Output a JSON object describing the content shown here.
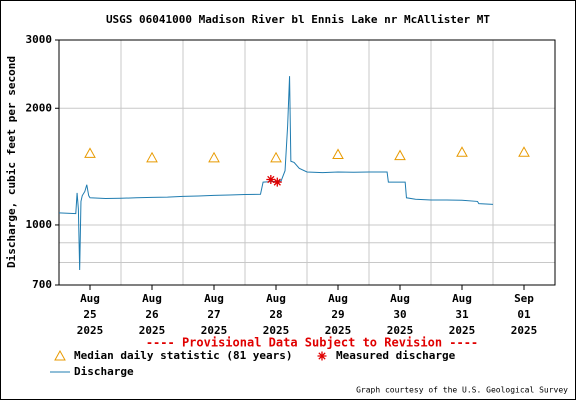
{
  "chart_data": {
    "type": "line",
    "title": "USGS 06041000 Madison River bl Ennis Lake nr McAllister MT",
    "y_label": "Discharge, cubic feet per second",
    "note": "---- Provisional Data Subject to Revision ----",
    "credit": "Graph courtesy of the U.S. Geological Survey",
    "log_scale": true,
    "grid": true,
    "xlim": [
      "2025-08-25T00:00",
      "2025-09-02T00:00"
    ],
    "xticks": [
      {
        "value": "2025-08-25T12:00",
        "label": "Aug 25 2025"
      },
      {
        "value": "2025-08-26T12:00",
        "label": "Aug 26 2025"
      },
      {
        "value": "2025-08-27T12:00",
        "label": "Aug 27 2025"
      },
      {
        "value": "2025-08-28T12:00",
        "label": "Aug 28 2025"
      },
      {
        "value": "2025-08-29T12:00",
        "label": "Aug 29 2025"
      },
      {
        "value": "2025-08-30T12:00",
        "label": "Aug 30 2025"
      },
      {
        "value": "2025-08-31T12:00",
        "label": "Aug 31 2025"
      },
      {
        "value": "2025-09-01T12:00",
        "label": "Sep 01 2025"
      }
    ],
    "x_minor_ticks": [
      "2025-08-26T00:00",
      "2025-08-27T00:00",
      "2025-08-28T00:00",
      "2025-08-29T00:00",
      "2025-08-30T00:00",
      "2025-08-31T00:00",
      "2025-09-01T00:00"
    ],
    "ylim": [
      700,
      3000
    ],
    "yticks": [
      700,
      1000,
      2000,
      3000
    ],
    "y_minor_ticks": [
      800,
      900
    ],
    "series": [
      {
        "name": "Discharge",
        "marker": "line",
        "color": "#1f7cb0",
        "x": [
          "2025-08-25T00:00",
          "2025-08-25T06:30",
          "2025-08-25T07:00",
          "2025-08-25T07:30",
          "2025-08-25T08:00",
          "2025-08-25T08:30",
          "2025-08-25T09:00",
          "2025-08-25T10:00",
          "2025-08-25T10:45",
          "2025-08-25T11:30",
          "2025-08-25T12:00",
          "2025-08-25T18:00",
          "2025-08-26T00:00",
          "2025-08-26T06:00",
          "2025-08-26T12:00",
          "2025-08-26T18:00",
          "2025-08-27T00:00",
          "2025-08-27T06:00",
          "2025-08-27T12:00",
          "2025-08-27T18:00",
          "2025-08-28T00:00",
          "2025-08-28T06:00",
          "2025-08-28T07:00",
          "2025-08-28T12:00",
          "2025-08-28T14:00",
          "2025-08-28T15:30",
          "2025-08-28T16:30",
          "2025-08-28T17:15",
          "2025-08-28T17:45",
          "2025-08-28T19:00",
          "2025-08-28T21:00",
          "2025-08-29T00:00",
          "2025-08-29T06:00",
          "2025-08-29T12:00",
          "2025-08-29T18:00",
          "2025-08-30T00:00",
          "2025-08-30T07:00",
          "2025-08-30T07:30",
          "2025-08-30T14:00",
          "2025-08-30T14:30",
          "2025-08-30T18:00",
          "2025-08-31T00:00",
          "2025-08-31T06:00",
          "2025-08-31T12:00",
          "2025-08-31T18:00",
          "2025-08-31T18:30",
          "2025-09-01T00:00"
        ],
        "values": [
          1074,
          1070,
          1210,
          1100,
          765,
          1150,
          1190,
          1220,
          1270,
          1190,
          1175,
          1170,
          1172,
          1175,
          1178,
          1180,
          1185,
          1188,
          1192,
          1195,
          1198,
          1200,
          1290,
          1295,
          1300,
          1380,
          1800,
          2420,
          1460,
          1450,
          1400,
          1370,
          1365,
          1370,
          1368,
          1370,
          1370,
          1290,
          1290,
          1175,
          1165,
          1160,
          1160,
          1158,
          1150,
          1135,
          1130
        ]
      },
      {
        "name": "Median daily statistic (81 years)",
        "marker": "triangle",
        "color": "#e89a00",
        "x": [
          "2025-08-25T12:00",
          "2025-08-26T12:00",
          "2025-08-27T12:00",
          "2025-08-28T12:00",
          "2025-08-29T12:00",
          "2025-08-30T12:00",
          "2025-08-31T12:00",
          "2025-09-01T12:00"
        ],
        "values": [
          1530,
          1490,
          1490,
          1490,
          1520,
          1510,
          1540,
          1540
        ]
      },
      {
        "name": "Measured discharge",
        "marker": "asterisk",
        "color": "#e00000",
        "x": [
          "2025-08-28T10:00",
          "2025-08-28T12:30"
        ],
        "values": [
          1310,
          1290
        ]
      }
    ]
  }
}
